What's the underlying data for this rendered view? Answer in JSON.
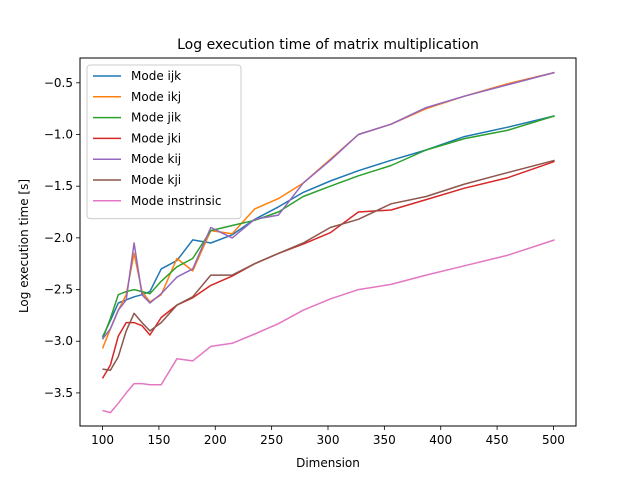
{
  "chart_data": {
    "type": "line",
    "title": "Log execution time of matrix multiplication",
    "xlabel": "Dimension",
    "ylabel": "Log execution time [s]",
    "xlim": [
      80,
      520
    ],
    "ylim": [
      -3.82,
      -0.26
    ],
    "xticks": [
      100,
      150,
      200,
      250,
      300,
      350,
      400,
      450,
      500
    ],
    "yticks": [
      -3.5,
      -3.0,
      -2.5,
      -2.0,
      -1.5,
      -1.0,
      -0.5
    ],
    "ytick_labels": [
      "−3.5",
      "−3.0",
      "−2.5",
      "−2.0",
      "−1.5",
      "−1.0",
      "−0.5"
    ],
    "grid": false,
    "legend_position": "upper-left",
    "x": [
      100,
      107,
      114,
      121,
      128,
      135,
      142,
      152,
      166,
      180,
      196,
      215,
      235,
      256,
      278,
      302,
      327,
      356,
      387,
      421,
      459,
      501
    ],
    "series": [
      {
        "name": "Mode ijk",
        "color": "#1f77b4",
        "values": [
          -2.96,
          -2.8,
          -2.63,
          -2.6,
          -2.57,
          -2.55,
          -2.52,
          -2.3,
          -2.22,
          -2.02,
          -2.05,
          -1.97,
          -1.82,
          -1.7,
          -1.56,
          -1.45,
          -1.35,
          -1.25,
          -1.15,
          -1.02,
          -0.93,
          -0.82
        ]
      },
      {
        "name": "Mode ikj",
        "color": "#ff7f0e",
        "values": [
          -3.07,
          -2.88,
          -2.7,
          -2.55,
          -2.15,
          -2.52,
          -2.62,
          -2.55,
          -2.2,
          -2.32,
          -1.93,
          -1.96,
          -1.72,
          -1.62,
          -1.47,
          -1.24,
          -1.0,
          -0.9,
          -0.75,
          -0.63,
          -0.51,
          -0.4
        ]
      },
      {
        "name": "Mode jik",
        "color": "#2ca02c",
        "values": [
          -2.98,
          -2.78,
          -2.55,
          -2.52,
          -2.5,
          -2.52,
          -2.54,
          -2.42,
          -2.28,
          -2.2,
          -1.93,
          -1.88,
          -1.83,
          -1.75,
          -1.6,
          -1.5,
          -1.4,
          -1.3,
          -1.15,
          -1.04,
          -0.96,
          -0.82
        ]
      },
      {
        "name": "Mode jki",
        "color": "#d62728",
        "values": [
          -3.36,
          -3.23,
          -2.95,
          -2.82,
          -2.82,
          -2.85,
          -2.94,
          -2.77,
          -2.65,
          -2.58,
          -2.46,
          -2.37,
          -2.25,
          -2.15,
          -2.06,
          -1.95,
          -1.75,
          -1.73,
          -1.63,
          -1.52,
          -1.42,
          -1.26
        ]
      },
      {
        "name": "Mode kij",
        "color": "#9467bd",
        "values": [
          -2.98,
          -2.88,
          -2.7,
          -2.6,
          -2.05,
          -2.55,
          -2.63,
          -2.54,
          -2.38,
          -2.3,
          -1.9,
          -2.0,
          -1.82,
          -1.78,
          -1.47,
          -1.25,
          -1.0,
          -0.9,
          -0.74,
          -0.63,
          -0.52,
          -0.4
        ]
      },
      {
        "name": "Mode kji",
        "color": "#8c564b",
        "values": [
          -3.27,
          -3.28,
          -3.15,
          -2.9,
          -2.73,
          -2.82,
          -2.9,
          -2.82,
          -2.65,
          -2.57,
          -2.36,
          -2.36,
          -2.25,
          -2.15,
          -2.05,
          -1.9,
          -1.82,
          -1.67,
          -1.6,
          -1.48,
          -1.37,
          -1.25
        ]
      },
      {
        "name": "Mode instrinsic",
        "color": "#e377c2",
        "values": [
          -3.67,
          -3.69,
          -3.6,
          -3.5,
          -3.41,
          -3.41,
          -3.42,
          -3.42,
          -3.17,
          -3.19,
          -3.05,
          -3.02,
          -2.93,
          -2.83,
          -2.7,
          -2.59,
          -2.5,
          -2.45,
          -2.36,
          -2.27,
          -2.17,
          -2.02
        ]
      }
    ]
  }
}
